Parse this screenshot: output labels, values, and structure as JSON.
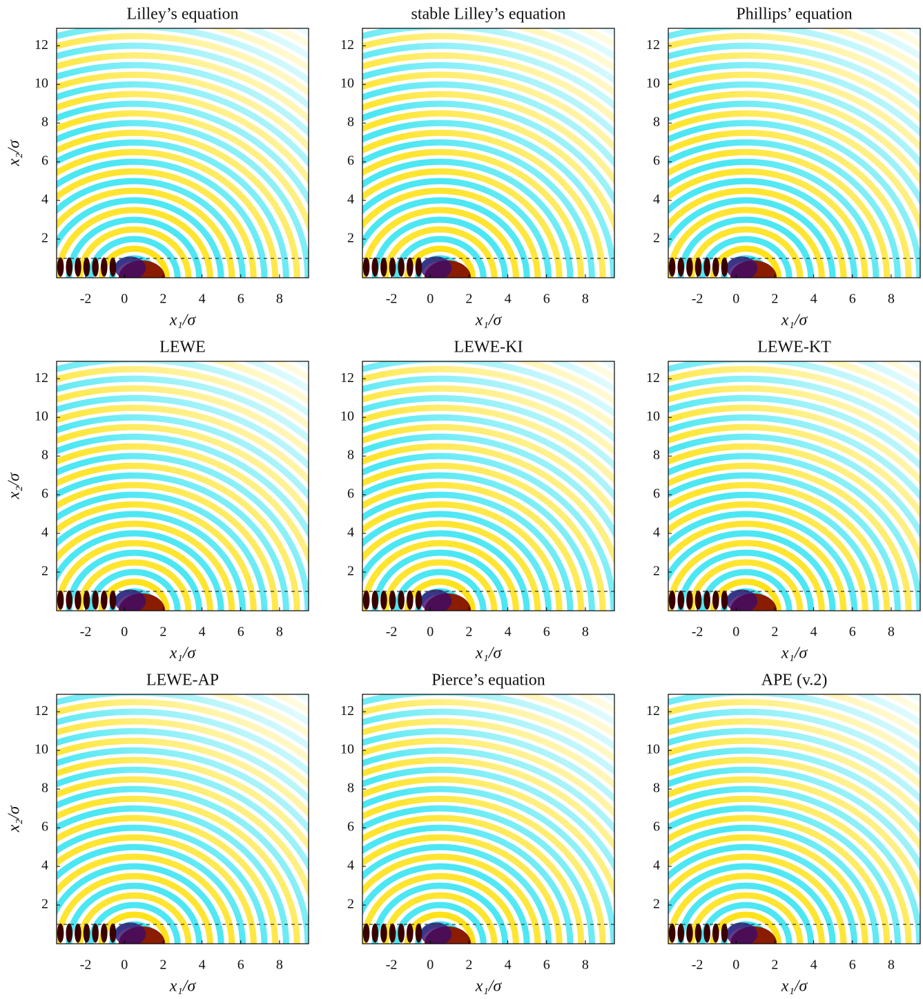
{
  "chart_data": [
    {
      "type": "field",
      "title": "Lilley’s equation",
      "xlabel": "x₁/σ",
      "ylabel": "x₂/σ",
      "xlim": [
        -3.5,
        9.5
      ],
      "ylim": [
        0,
        12.9
      ],
      "xticks": [
        -2,
        0,
        2,
        4,
        6,
        8
      ],
      "yticks": [
        2,
        4,
        6,
        8,
        10,
        12
      ],
      "hline": 1
    },
    {
      "type": "field",
      "title": "stable Lilley’s equation",
      "xlabel": "x₁/σ",
      "xlim": [
        -3.5,
        9.5
      ],
      "ylim": [
        0,
        12.9
      ],
      "xticks": [
        -2,
        0,
        2,
        4,
        6,
        8
      ],
      "yticks": [
        2,
        4,
        6,
        8,
        10,
        12
      ],
      "hline": 1
    },
    {
      "type": "field",
      "title": "Phillips’ equation",
      "xlabel": "x₁/σ",
      "xlim": [
        -3.5,
        9.5
      ],
      "ylim": [
        0,
        12.9
      ],
      "xticks": [
        -2,
        0,
        2,
        4,
        6,
        8
      ],
      "yticks": [
        2,
        4,
        6,
        8,
        10,
        12
      ],
      "hline": 1
    },
    {
      "type": "field",
      "title": "LEWE",
      "xlabel": "x₁/σ",
      "ylabel": "x₂/σ",
      "xlim": [
        -3.5,
        9.5
      ],
      "ylim": [
        0,
        12.9
      ],
      "xticks": [
        -2,
        0,
        2,
        4,
        6,
        8
      ],
      "yticks": [
        2,
        4,
        6,
        8,
        10,
        12
      ],
      "hline": 1
    },
    {
      "type": "field",
      "title": "LEWE-KI",
      "xlabel": "x₁/σ",
      "xlim": [
        -3.5,
        9.5
      ],
      "ylim": [
        0,
        12.9
      ],
      "xticks": [
        -2,
        0,
        2,
        4,
        6,
        8
      ],
      "yticks": [
        2,
        4,
        6,
        8,
        10,
        12
      ],
      "hline": 1
    },
    {
      "type": "field",
      "title": "LEWE-KT",
      "xlabel": "x₁/σ",
      "xlim": [
        -3.5,
        9.5
      ],
      "ylim": [
        0,
        12.9
      ],
      "xticks": [
        -2,
        0,
        2,
        4,
        6,
        8
      ],
      "yticks": [
        2,
        4,
        6,
        8,
        10,
        12
      ],
      "hline": 1
    },
    {
      "type": "field",
      "title": "LEWE-AP",
      "xlabel": "x₁/σ",
      "ylabel": "x₂/σ",
      "xlim": [
        -3.5,
        9.5
      ],
      "ylim": [
        0,
        12.9
      ],
      "xticks": [
        -2,
        0,
        2,
        4,
        6,
        8
      ],
      "yticks": [
        2,
        4,
        6,
        8,
        10,
        12
      ],
      "hline": 1
    },
    {
      "type": "field",
      "title": "Pierce’s equation",
      "xlabel": "x₁/σ",
      "xlim": [
        -3.5,
        9.5
      ],
      "ylim": [
        0,
        12.9
      ],
      "xticks": [
        -2,
        0,
        2,
        4,
        6,
        8
      ],
      "yticks": [
        2,
        4,
        6,
        8,
        10,
        12
      ],
      "hline": 1
    },
    {
      "type": "field",
      "title": "APE (v.2)",
      "xlabel": "x₁/σ",
      "xlim": [
        -3.5,
        9.5
      ],
      "ylim": [
        0,
        12.9
      ],
      "xticks": [
        -2,
        0,
        2,
        4,
        6,
        8
      ],
      "yticks": [
        2,
        4,
        6,
        8,
        10,
        12
      ],
      "hline": 1
    }
  ]
}
